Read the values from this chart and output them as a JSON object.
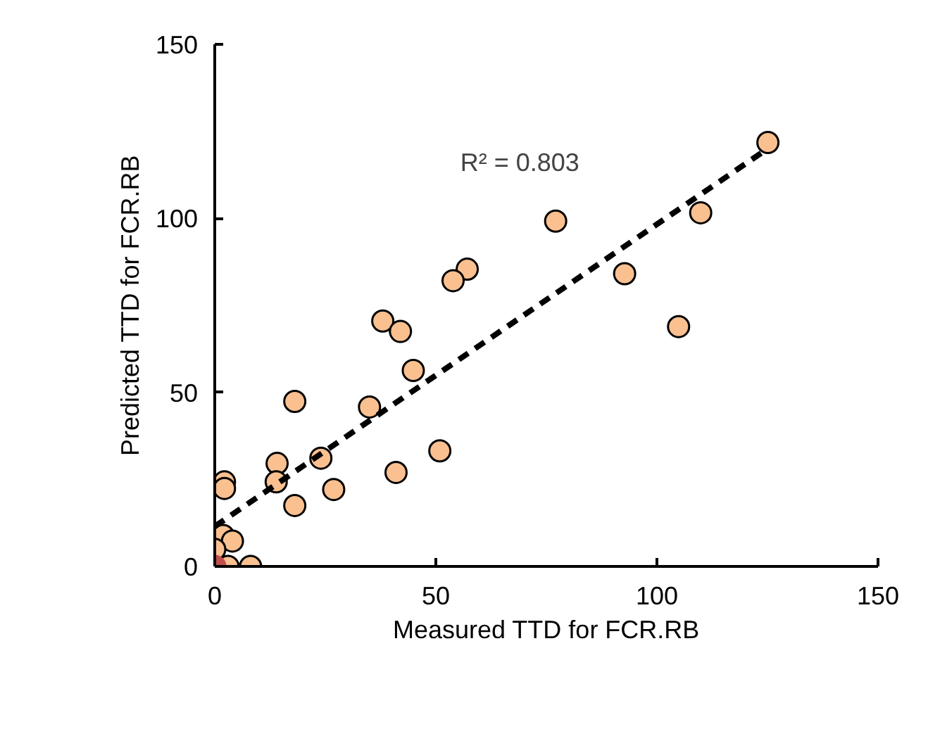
{
  "chart_data": {
    "type": "scatter",
    "xlabel": "Measured TTD for FCR.RB",
    "ylabel": "Predicted TTD for FCR.RB",
    "xlim": [
      0,
      150
    ],
    "ylim": [
      0,
      150
    ],
    "xticks": [
      0,
      50,
      100,
      150
    ],
    "yticks": [
      0,
      50,
      100,
      150
    ],
    "grid": false,
    "marker": "circle",
    "series": [
      {
        "color": "#fac090",
        "x": [
          125.1,
          109.9,
          77.1,
          57.1,
          53.9,
          92.7,
          38.0,
          42.0,
          104.9,
          44.9,
          18.1,
          35.0,
          50.9,
          14.1,
          24.0,
          2.2,
          2.2,
          13.9,
          26.9,
          41.0,
          18.1,
          1.9,
          4.0,
          0,
          3.0,
          8.1
        ],
        "values": [
          121.8,
          101.6,
          99.2,
          85.4,
          82.1,
          84.1,
          70.5,
          67.5,
          68.9,
          56.3,
          47.4,
          45.8,
          33.2,
          29.6,
          31.1,
          24.3,
          22.4,
          24.3,
          22.1,
          27.0,
          17.5,
          8.9,
          7.3,
          4.9,
          0,
          0
        ]
      },
      {
        "color": "#c0504d",
        "x": [
          0
        ],
        "values": [
          0
        ]
      },
      {
        "type": "line",
        "line_style": "dashed",
        "marker": "none",
        "color": "#000000",
        "x": [
          0,
          125
        ],
        "values": [
          11.5,
          120
        ]
      }
    ],
    "annotations": [
      "R² = 0.803"
    ]
  }
}
